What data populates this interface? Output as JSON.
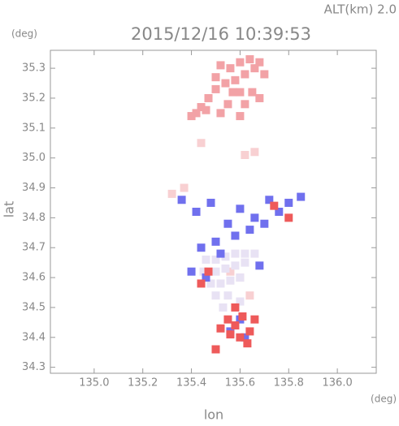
{
  "chart_data": {
    "type": "scatter",
    "title": "2015/12/16 10:39:53",
    "subtitle": "ALT(km) 2.0",
    "y_unit": "(deg)",
    "x_unit": "(deg)",
    "xlabel": "lon",
    "ylabel": "lat",
    "xlim": [
      134.82,
      136.16
    ],
    "ylim": [
      34.28,
      35.36
    ],
    "xticks": [
      {
        "value": 135,
        "label": "135.0"
      },
      135.2,
      135.4,
      135.6,
      135.8,
      {
        "value": 136,
        "label": "136.0"
      }
    ],
    "yticks": [
      34.3,
      34.4,
      34.5,
      34.6,
      34.7,
      34.8,
      34.9,
      {
        "value": 35,
        "label": "35.0"
      },
      35.1,
      35.2,
      35.3
    ],
    "series": [
      {
        "color": "#f2a2a6",
        "x": [
          135.52,
          135.56,
          135.6,
          135.64,
          135.68,
          135.7,
          135.62,
          135.58,
          135.54,
          135.5,
          135.47,
          135.44,
          135.42,
          135.6,
          135.65,
          135.55,
          135.62,
          135.4,
          135.68,
          135.66,
          135.5,
          135.57,
          135.6,
          135.52,
          135.46
        ],
        "values": [
          35.31,
          35.3,
          35.32,
          35.33,
          35.32,
          35.28,
          35.28,
          35.26,
          35.25,
          35.23,
          35.2,
          35.17,
          35.15,
          35.22,
          35.22,
          35.18,
          35.18,
          35.14,
          35.2,
          35.3,
          35.27,
          35.22,
          35.14,
          35.15,
          35.16
        ]
      },
      {
        "color": "#f8d0d2",
        "x": [
          135.62,
          135.66,
          135.44,
          135.56,
          135.6,
          135.32,
          135.37,
          135.64
        ],
        "values": [
          35.01,
          35.02,
          35.05,
          34.62,
          34.6,
          34.88,
          34.9,
          34.54
        ]
      },
      {
        "color": "#e8e2f4",
        "x": [
          135.46,
          135.5,
          135.54,
          135.58,
          135.62,
          135.66,
          135.5,
          135.54,
          135.58,
          135.62,
          135.48,
          135.52,
          135.56,
          135.6,
          135.5,
          135.55,
          135.6,
          135.45,
          135.53
        ],
        "values": [
          34.66,
          34.66,
          34.67,
          34.68,
          34.68,
          34.68,
          34.62,
          34.63,
          34.64,
          34.65,
          34.58,
          34.58,
          34.59,
          34.6,
          34.54,
          34.54,
          34.52,
          34.62,
          34.5
        ]
      },
      {
        "color": "#7070ee",
        "x": [
          135.36,
          135.42,
          135.48,
          135.55,
          135.6,
          135.66,
          135.72,
          135.76,
          135.8,
          135.85,
          135.44,
          135.5,
          135.58,
          135.64,
          135.7,
          135.4,
          135.46,
          135.52,
          135.68,
          135.6,
          135.56,
          135.62
        ],
        "values": [
          34.86,
          34.82,
          34.85,
          34.78,
          34.83,
          34.8,
          34.86,
          34.82,
          34.85,
          34.87,
          34.7,
          34.72,
          34.74,
          34.76,
          34.78,
          34.62,
          34.6,
          34.68,
          34.64,
          34.46,
          34.42,
          34.4
        ]
      },
      {
        "color": "#ee5a5a",
        "x": [
          135.55,
          135.58,
          135.61,
          135.64,
          135.56,
          135.6,
          135.63,
          135.52,
          135.66,
          135.5,
          135.47,
          135.74,
          135.8,
          135.44,
          135.58
        ],
        "values": [
          34.46,
          34.44,
          34.47,
          34.42,
          34.41,
          34.4,
          34.38,
          34.43,
          34.46,
          34.36,
          34.62,
          34.84,
          34.8,
          34.58,
          34.5
        ]
      }
    ]
  }
}
